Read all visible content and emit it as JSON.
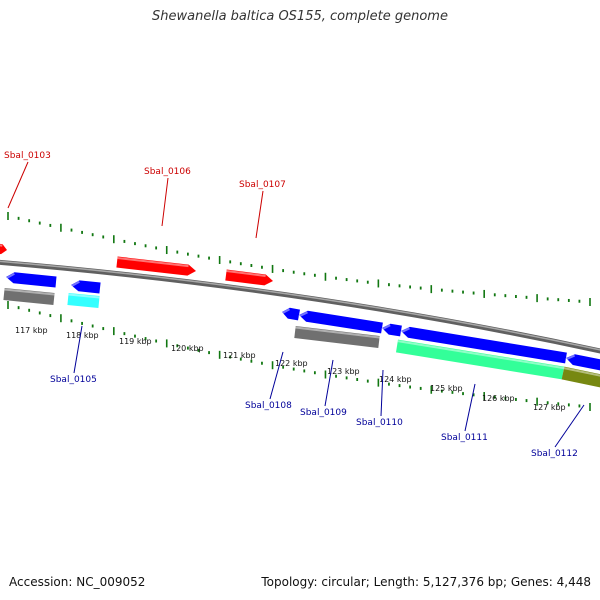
{
  "title": "Shewanella baltica OS155, complete genome",
  "accession": "Accession: NC_009052",
  "topology": "Topology: circular; Length: 5,127,376 bp; Genes: 4,448",
  "colors": {
    "forward": "#ff0000",
    "reverse": "#0000ff",
    "forward_label": "#cc0000",
    "reverse_label": "#000099",
    "pseudo": "#707070",
    "trna": "#33ffff",
    "rrna": "#33ff99",
    "misc": "#778811",
    "ticks": "#117711",
    "backbone": "#808080"
  },
  "scale_ticks": [
    {
      "label": "117 kbp"
    },
    {
      "label": "118 kbp"
    },
    {
      "label": "119 kbp"
    },
    {
      "label": "120 kbp"
    },
    {
      "label": "121 kbp"
    },
    {
      "label": "122 kbp"
    },
    {
      "label": "123 kbp"
    },
    {
      "label": "124 kbp"
    },
    {
      "label": "125 kbp"
    },
    {
      "label": "126 kbp"
    },
    {
      "label": "127 kbp"
    }
  ],
  "gene_labels": {
    "forward": [
      {
        "name": "Sbal_0103"
      },
      {
        "name": "Sbal_0106"
      },
      {
        "name": "Sbal_0107"
      }
    ],
    "reverse": [
      {
        "name": "Sbal_0105"
      },
      {
        "name": "Sbal_0108"
      },
      {
        "name": "Sbal_0109"
      },
      {
        "name": "Sbal_0110"
      },
      {
        "name": "Sbal_0111"
      },
      {
        "name": "Sbal_0112"
      }
    ]
  }
}
